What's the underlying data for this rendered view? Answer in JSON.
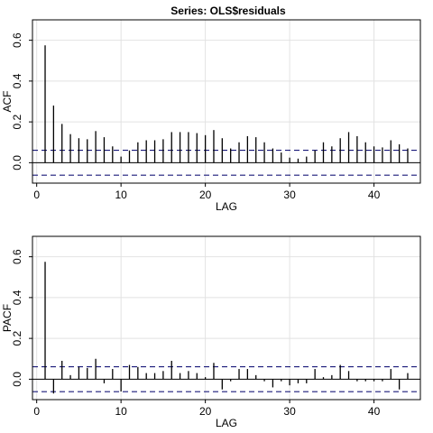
{
  "title": "Series:  OLS$residuals",
  "chart_data": [
    {
      "type": "bar",
      "ylabel": "ACF",
      "xlabel": "LAG",
      "ylim": [
        -0.1,
        0.7
      ],
      "xlim": [
        -0.5,
        45.5
      ],
      "x_ticks": [
        0,
        10,
        20,
        30,
        40
      ],
      "y_ticks": [
        0.0,
        0.2,
        0.4,
        0.6
      ],
      "y_tick_labels": [
        "0.0",
        "0.2",
        "0.4",
        "0.6"
      ],
      "grid": true,
      "ci": 0.061,
      "lags": [
        1,
        2,
        3,
        4,
        5,
        6,
        7,
        8,
        9,
        10,
        11,
        12,
        13,
        14,
        15,
        16,
        17,
        18,
        19,
        20,
        21,
        22,
        23,
        24,
        25,
        26,
        27,
        28,
        29,
        30,
        31,
        32,
        33,
        34,
        35,
        36,
        37,
        38,
        39,
        40,
        41,
        42,
        43,
        44
      ],
      "values": [
        0.575,
        0.28,
        0.19,
        0.14,
        0.12,
        0.115,
        0.155,
        0.125,
        0.08,
        0.03,
        0.06,
        0.1,
        0.11,
        0.11,
        0.115,
        0.15,
        0.15,
        0.15,
        0.145,
        0.135,
        0.16,
        0.12,
        0.07,
        0.1,
        0.13,
        0.125,
        0.1,
        0.07,
        0.05,
        0.025,
        0.02,
        0.03,
        0.06,
        0.1,
        0.08,
        0.12,
        0.15,
        0.13,
        0.1,
        0.08,
        0.075,
        0.11,
        0.09,
        0.07
      ]
    },
    {
      "type": "bar",
      "ylabel": "PACF",
      "xlabel": "LAG",
      "ylim": [
        -0.1,
        0.7
      ],
      "xlim": [
        -0.5,
        45.5
      ],
      "x_ticks": [
        0,
        10,
        20,
        30,
        40
      ],
      "y_ticks": [
        0.0,
        0.2,
        0.4,
        0.6
      ],
      "y_tick_labels": [
        "0.0",
        "0.2",
        "0.4",
        "0.6"
      ],
      "grid": true,
      "ci": 0.061,
      "lags": [
        1,
        2,
        3,
        4,
        5,
        6,
        7,
        8,
        9,
        10,
        11,
        12,
        13,
        14,
        15,
        16,
        17,
        18,
        19,
        20,
        21,
        22,
        23,
        24,
        25,
        26,
        27,
        28,
        29,
        30,
        31,
        32,
        33,
        34,
        35,
        36,
        37,
        38,
        39,
        40,
        41,
        42,
        43,
        44
      ],
      "values": [
        0.575,
        -0.07,
        0.09,
        0.02,
        0.06,
        0.055,
        0.1,
        -0.02,
        0.05,
        -0.06,
        0.07,
        0.06,
        0.03,
        0.03,
        0.04,
        0.09,
        0.03,
        0.04,
        0.03,
        0.01,
        0.08,
        -0.05,
        -0.01,
        0.05,
        0.05,
        0.02,
        -0.01,
        -0.04,
        -0.01,
        -0.03,
        -0.02,
        -0.02,
        0.05,
        0.01,
        0.02,
        0.07,
        0.04,
        -0.01,
        -0.01,
        -0.01,
        -0.01,
        0.05,
        -0.05,
        0.03
      ]
    }
  ]
}
